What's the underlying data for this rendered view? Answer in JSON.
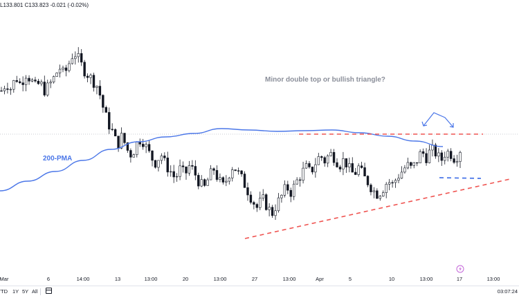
{
  "header": {
    "ohlc_text": "L133.801  C133.823  -0.021 (-0.02%)"
  },
  "annotations": {
    "question": "Minor double top or bullish triangle?",
    "pma_label": "200-PMA"
  },
  "bottom_bar": {
    "ranges": [
      "YTD",
      "1Y",
      "5Y",
      "All"
    ],
    "clock": "03:07:24"
  },
  "icons": {
    "calendar": "calendar-icon",
    "lightning": "lightning-icon"
  },
  "colors": {
    "up": "#131722",
    "down": "#131722",
    "ma": "#4a76e8",
    "resistance": "#ef5350",
    "support_dash": "#4a76e8",
    "arrows": "#4a76e8"
  },
  "chart_data": {
    "type": "candlestick",
    "title": "",
    "xlabel": "",
    "ylabel": "",
    "x_tick_labels": [
      "Mar",
      "6",
      "14:00",
      "13",
      "13:00",
      "20",
      "13:00",
      "27",
      "13:00",
      "Apr",
      "5",
      "10",
      "13:00",
      "17",
      "13:00"
    ],
    "price_path": [
      130.2,
      130.6,
      130.3,
      130.9,
      130.5,
      131.1,
      130.8,
      130.4,
      130.6,
      130.2,
      130.5,
      130.9,
      131.4,
      131.0,
      131.6,
      132.2,
      131.8,
      131.3,
      131.0,
      130.7,
      130.4,
      129.4,
      128.6,
      128.1,
      127.4,
      127.9,
      127.2,
      126.9,
      127.5,
      127.8,
      127.3,
      126.8,
      126.5,
      127.0,
      126.4,
      126.1,
      125.7,
      126.2,
      125.9,
      126.4,
      126.0,
      125.5,
      125.2,
      125.8,
      126.2,
      125.6,
      125.3,
      125.9,
      126.4,
      126.0,
      125.6,
      125.1,
      124.6,
      124.2,
      124.7,
      124.3,
      123.9,
      124.4,
      124.8,
      125.3,
      125.0,
      125.5,
      125.9,
      126.3,
      126.0,
      126.5,
      126.9,
      126.6,
      127.0,
      126.8,
      126.4,
      126.7,
      126.2,
      125.9,
      126.3,
      125.8,
      125.5,
      125.1,
      124.9,
      125.2,
      125.6,
      125.4,
      125.8,
      126.1,
      126.4,
      126.2,
      126.6,
      127.1,
      126.8,
      127.2,
      127.0,
      126.6,
      127.1,
      127.0,
      126.7,
      127.2
    ],
    "ma_label": "200-PMA"
  }
}
